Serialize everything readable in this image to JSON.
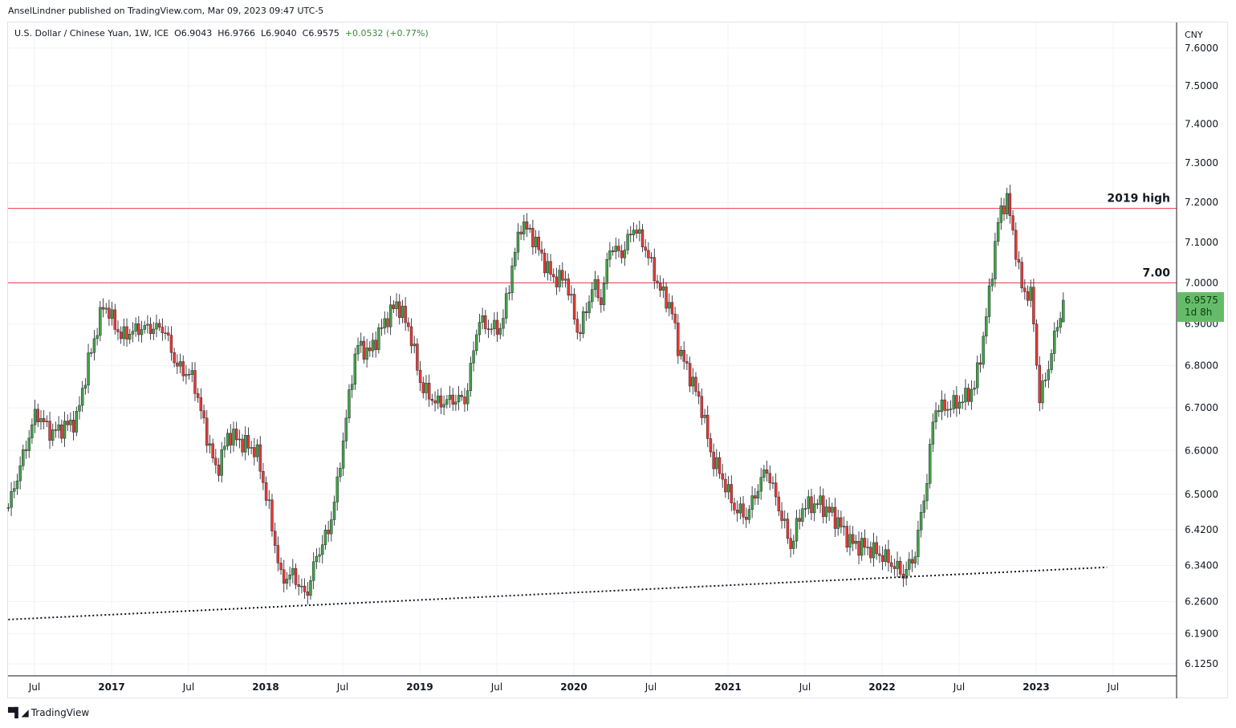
{
  "publisher_line": "AnselLindner published on TradingView.com, Mar 09, 2023 09:47 UTC-5",
  "legend": {
    "symbol": "U.S. Dollar / Chinese Yuan, 1W, ICE",
    "open": "O6.9043",
    "high": "H6.9766",
    "low": "L6.9040",
    "close": "C6.9575",
    "change": "+0.0532 (+0.77%)"
  },
  "price_tag": {
    "price": "6.9575",
    "countdown": "1d 8h"
  },
  "footer": {
    "brand": "TradingView",
    "logo_text": "TV"
  },
  "colors": {
    "up": "#43a047",
    "down": "#e53935",
    "level": "#f23645",
    "grid": "#f0f3fa"
  },
  "chart_data": {
    "type": "candlestick",
    "title": "U.S. Dollar / Chinese Yuan, 1W, ICE",
    "currency_label": "CNY",
    "y_scale": "log",
    "ylim": [
      6.125,
      7.6
    ],
    "y_ticks": [
      "7.6000",
      "7.5000",
      "7.4000",
      "7.3000",
      "7.2000",
      "7.1000",
      "7.0000",
      "6.9000",
      "6.8000",
      "6.7000",
      "6.6000",
      "6.5000",
      "6.4200",
      "6.3400",
      "6.2600",
      "6.1900",
      "6.1250"
    ],
    "x_ticks": [
      {
        "t": 2016.5,
        "label": "Jul",
        "bold": false
      },
      {
        "t": 2017,
        "label": "2017",
        "bold": true
      },
      {
        "t": 2017.5,
        "label": "Jul",
        "bold": false
      },
      {
        "t": 2018,
        "label": "2018",
        "bold": true
      },
      {
        "t": 2018.5,
        "label": "Jul",
        "bold": false
      },
      {
        "t": 2019,
        "label": "2019",
        "bold": true
      },
      {
        "t": 2019.5,
        "label": "Jul",
        "bold": false
      },
      {
        "t": 2020,
        "label": "2020",
        "bold": true
      },
      {
        "t": 2020.5,
        "label": "Jul",
        "bold": false
      },
      {
        "t": 2021,
        "label": "2021",
        "bold": true
      },
      {
        "t": 2021.5,
        "label": "Jul",
        "bold": false
      },
      {
        "t": 2022,
        "label": "2022",
        "bold": true
      },
      {
        "t": 2022.5,
        "label": "Jul",
        "bold": false
      },
      {
        "t": 2023,
        "label": "2023",
        "bold": true
      },
      {
        "t": 2023.5,
        "label": "Jul",
        "bold": false
      }
    ],
    "close_path_approx": [
      [
        2016.33,
        6.47
      ],
      [
        2016.51,
        6.69
      ],
      [
        2016.61,
        6.64
      ],
      [
        2016.77,
        6.67
      ],
      [
        2016.85,
        6.81
      ],
      [
        2016.95,
        6.95
      ],
      [
        2017.06,
        6.87
      ],
      [
        2017.19,
        6.89
      ],
      [
        2017.34,
        6.89
      ],
      [
        2017.42,
        6.8
      ],
      [
        2017.53,
        6.77
      ],
      [
        2017.6,
        6.66
      ],
      [
        2017.68,
        6.55
      ],
      [
        2017.76,
        6.64
      ],
      [
        2017.84,
        6.62
      ],
      [
        2017.94,
        6.6
      ],
      [
        2018.02,
        6.47
      ],
      [
        2018.1,
        6.31
      ],
      [
        2018.18,
        6.32
      ],
      [
        2018.26,
        6.27
      ],
      [
        2018.33,
        6.36
      ],
      [
        2018.41,
        6.42
      ],
      [
        2018.46,
        6.51
      ],
      [
        2018.52,
        6.67
      ],
      [
        2018.59,
        6.85
      ],
      [
        2018.67,
        6.83
      ],
      [
        2018.78,
        6.91
      ],
      [
        2018.85,
        6.95
      ],
      [
        2018.93,
        6.89
      ],
      [
        2019.01,
        6.75
      ],
      [
        2019.11,
        6.71
      ],
      [
        2019.22,
        6.72
      ],
      [
        2019.3,
        6.72
      ],
      [
        2019.38,
        6.91
      ],
      [
        2019.45,
        6.89
      ],
      [
        2019.53,
        6.89
      ],
      [
        2019.61,
        7.06
      ],
      [
        2019.66,
        7.15
      ],
      [
        2019.74,
        7.11
      ],
      [
        2019.82,
        7.04
      ],
      [
        2019.87,
        7.01
      ],
      [
        2019.95,
        7.01
      ],
      [
        2020.03,
        6.87
      ],
      [
        2020.13,
        7.0
      ],
      [
        2020.18,
        6.95
      ],
      [
        2020.23,
        7.09
      ],
      [
        2020.31,
        7.07
      ],
      [
        2020.39,
        7.14
      ],
      [
        2020.47,
        7.08
      ],
      [
        2020.55,
        6.99
      ],
      [
        2020.63,
        6.94
      ],
      [
        2020.68,
        6.84
      ],
      [
        2020.76,
        6.77
      ],
      [
        2020.83,
        6.7
      ],
      [
        2020.89,
        6.59
      ],
      [
        2020.96,
        6.54
      ],
      [
        2021.04,
        6.47
      ],
      [
        2021.12,
        6.45
      ],
      [
        2021.2,
        6.52
      ],
      [
        2021.25,
        6.56
      ],
      [
        2021.33,
        6.47
      ],
      [
        2021.41,
        6.38
      ],
      [
        2021.48,
        6.47
      ],
      [
        2021.59,
        6.48
      ],
      [
        2021.69,
        6.45
      ],
      [
        2021.8,
        6.39
      ],
      [
        2021.9,
        6.38
      ],
      [
        2022.01,
        6.36
      ],
      [
        2022.14,
        6.32
      ],
      [
        2022.21,
        6.36
      ],
      [
        2022.29,
        6.53
      ],
      [
        2022.34,
        6.7
      ],
      [
        2022.42,
        6.7
      ],
      [
        2022.53,
        6.72
      ],
      [
        2022.6,
        6.75
      ],
      [
        2022.66,
        6.87
      ],
      [
        2022.71,
        7.02
      ],
      [
        2022.76,
        7.17
      ],
      [
        2022.81,
        7.21
      ],
      [
        2022.86,
        7.1
      ],
      [
        2022.91,
        6.98
      ],
      [
        2022.97,
        6.97
      ],
      [
        2023.02,
        6.72
      ],
      [
        2023.07,
        6.78
      ],
      [
        2023.12,
        6.87
      ],
      [
        2023.18,
        6.9575
      ]
    ],
    "last_bar": {
      "open": 6.9043,
      "high": 6.9766,
      "low": 6.904,
      "close": 6.9575
    },
    "levels": [
      {
        "price": 7.185,
        "label": "2019 high"
      },
      {
        "price": 7.0,
        "label": "7.00"
      }
    ],
    "trendline": {
      "style": "dotted",
      "points": [
        [
          2016.33,
          6.221
        ],
        [
          2023.46,
          6.336
        ]
      ]
    }
  }
}
